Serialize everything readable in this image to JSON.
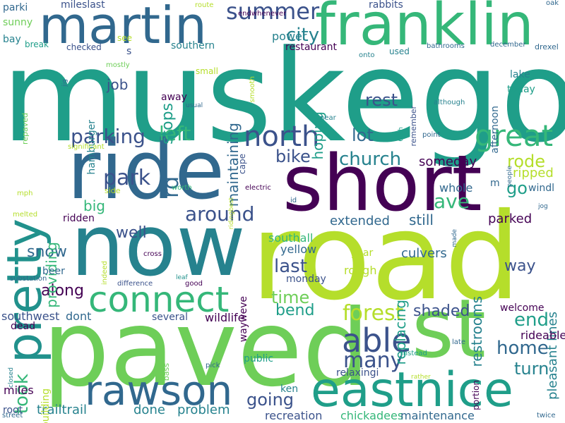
{
  "palette": {
    "dark_purple": "#440154",
    "indigo": "#3b528b",
    "blue": "#31688e",
    "teal_blue": "#26828e",
    "teal": "#21918c",
    "sea_green": "#1f9e89",
    "green": "#35b779",
    "light_green": "#6ece58",
    "yellow_green": "#b5de2b",
    "yellow": "#fde725",
    "background": "#ffffff"
  },
  "words": [
    {
      "text": "muskego",
      "color": "#1f9e89"
    },
    {
      "text": "road",
      "color": "#b5de2b"
    },
    {
      "text": "paved",
      "color": "#6ece58"
    },
    {
      "text": "now",
      "color": "#26828e"
    },
    {
      "text": "ride",
      "color": "#31688e"
    },
    {
      "text": "short",
      "color": "#440154"
    },
    {
      "text": "st",
      "color": "#6ece58"
    },
    {
      "text": "franklin",
      "color": "#35b779"
    },
    {
      "text": "martin",
      "color": "#31688e"
    },
    {
      "text": "pretty",
      "color": "#21918c"
    },
    {
      "text": "eastnice",
      "color": "#1f9e89"
    },
    {
      "text": "rawson",
      "color": "#31688e"
    },
    {
      "text": "connect",
      "color": "#35b779"
    },
    {
      "text": "great",
      "color": "#35b779"
    },
    {
      "text": "north",
      "color": "#3b528b"
    },
    {
      "text": "able",
      "color": "#3b528b"
    },
    {
      "text": "summer",
      "color": "#3b528b"
    },
    {
      "text": "parking",
      "color": "#3b528b"
    },
    {
      "text": "city",
      "color": "#26828e"
    },
    {
      "text": "rest",
      "color": "#3b528b"
    },
    {
      "text": "lot",
      "color": "#31688e"
    },
    {
      "text": "church",
      "color": "#26828e"
    },
    {
      "text": "bike",
      "color": "#3b528b"
    },
    {
      "text": "left",
      "color": "#35b779"
    },
    {
      "text": "park",
      "color": "#3b528b"
    },
    {
      "text": "rd",
      "color": "#31688e"
    },
    {
      "text": "around",
      "color": "#3b528b"
    },
    {
      "text": "rode",
      "color": "#b5de2b"
    },
    {
      "text": "go",
      "color": "#1f9e89"
    },
    {
      "text": "ave",
      "color": "#35b779"
    },
    {
      "text": "forest",
      "color": "#b5de2b"
    },
    {
      "text": "many",
      "color": "#3b528b"
    },
    {
      "text": "took",
      "color": "#35b779"
    },
    {
      "text": "home",
      "color": "#31688e"
    },
    {
      "text": "turn",
      "color": "#26828e"
    },
    {
      "text": "end",
      "color": "#1f9e89"
    },
    {
      "text": "going",
      "color": "#3b528b"
    },
    {
      "text": "last",
      "color": "#3b528b"
    },
    {
      "text": "time",
      "color": "#6ece58"
    },
    {
      "text": "snow",
      "color": "#31688e"
    },
    {
      "text": "along",
      "color": "#440154"
    },
    {
      "text": "shaded",
      "color": "#3b528b"
    },
    {
      "text": "providing",
      "color": "#35b779"
    },
    {
      "text": "job",
      "color": "#3b528b"
    },
    {
      "text": "stops",
      "color": "#1f9e89"
    },
    {
      "text": "maintaining",
      "color": "#31688e"
    },
    {
      "text": "hoping",
      "color": "#1f9e89"
    },
    {
      "text": "bend",
      "color": "#1f9e89"
    },
    {
      "text": "extended",
      "color": "#31688e"
    },
    {
      "text": "still",
      "color": "#31688e"
    },
    {
      "text": "replacing",
      "color": "#1f9e89"
    },
    {
      "text": "restrooms",
      "color": "#26828e"
    },
    {
      "text": "way",
      "color": "#3b528b"
    },
    {
      "text": "well",
      "color": "#3b528b"
    },
    {
      "text": "big",
      "color": "#35b779"
    },
    {
      "text": "someday",
      "color": "#440154"
    },
    {
      "text": "ripped",
      "color": "#b5de2b"
    },
    {
      "text": "whole",
      "color": "#31688e"
    },
    {
      "text": "parked",
      "color": "#440154"
    },
    {
      "text": "pleasant lines",
      "color": "#26828e"
    },
    {
      "text": "rideable",
      "color": "#440154"
    },
    {
      "text": "welcome",
      "color": "#440154"
    },
    {
      "text": "southall",
      "color": "#35b779"
    },
    {
      "text": "yellow",
      "color": "#31688e"
    },
    {
      "text": "culvers",
      "color": "#31688e"
    },
    {
      "text": "year",
      "color": "#b5de2b"
    },
    {
      "text": "rough",
      "color": "#b5de2b"
    },
    {
      "text": "monday",
      "color": "#3b528b"
    },
    {
      "text": "wayweve",
      "color": "#440154"
    },
    {
      "text": "wildlife",
      "color": "#440154"
    },
    {
      "text": "several",
      "color": "#3b528b"
    },
    {
      "text": "southwest",
      "color": "#3b528b"
    },
    {
      "text": "dont",
      "color": "#31688e"
    },
    {
      "text": "dead",
      "color": "#440154"
    },
    {
      "text": "problem",
      "color": "#26828e"
    },
    {
      "text": "done",
      "color": "#26828e"
    },
    {
      "text": "trailtrail",
      "color": "#26828e"
    },
    {
      "text": "recreation",
      "color": "#3b528b"
    },
    {
      "text": "chickadees",
      "color": "#35b779"
    },
    {
      "text": "maintenance",
      "color": "#31688e"
    },
    {
      "text": "relaxingi",
      "color": "#3b528b"
    },
    {
      "text": "public",
      "color": "#1f9e89"
    },
    {
      "text": "building",
      "color": "#b5de2b"
    },
    {
      "text": "miles",
      "color": "#440154"
    },
    {
      "text": "root",
      "color": "#3b528b"
    },
    {
      "text": "ridden",
      "color": "#440154"
    },
    {
      "text": "beer",
      "color": "#31688e"
    },
    {
      "text": "ken",
      "color": "#26828e"
    },
    {
      "text": "restaurant",
      "color": "#440154"
    },
    {
      "text": "power",
      "color": "#26828e"
    },
    {
      "text": "southern",
      "color": "#26828e"
    },
    {
      "text": "hamburger",
      "color": "#26828e"
    },
    {
      "text": "cape",
      "color": "#3b528b"
    },
    {
      "text": "afternoon",
      "color": "#31688e"
    },
    {
      "text": "lake",
      "color": "#26828e"
    },
    {
      "text": "today",
      "color": "#1f9e89"
    },
    {
      "text": "used",
      "color": "#26828e"
    },
    {
      "text": "rabbits",
      "color": "#3b528b"
    },
    {
      "text": "mileslast",
      "color": "#3b528b"
    },
    {
      "text": "parki",
      "color": "#31688e"
    },
    {
      "text": "sunny",
      "color": "#6ece58"
    },
    {
      "text": "bay",
      "color": "#26828e"
    },
    {
      "text": "break",
      "color": "#1f9e89"
    },
    {
      "text": "checked",
      "color": "#3b528b"
    },
    {
      "text": "see",
      "color": "#b5de2b"
    },
    {
      "text": "s",
      "color": "#3b528b"
    },
    {
      "text": "away",
      "color": "#440154"
    },
    {
      "text": "small",
      "color": "#b5de2b"
    },
    {
      "text": "windl",
      "color": "#31688e"
    },
    {
      "text": "m",
      "color": "#31688e"
    },
    {
      "text": "oak",
      "color": "#31688e"
    },
    {
      "text": "drexel",
      "color": "#31688e"
    },
    {
      "text": "december",
      "color": "#31688e"
    },
    {
      "text": "bathrooms",
      "color": "#31688e"
    },
    {
      "text": "remember",
      "color": "#3b528b"
    },
    {
      "text": "onto",
      "color": "#26828e"
    },
    {
      "text": "although",
      "color": "#26828e"
    },
    {
      "text": "68th",
      "color": "#1f9e89"
    },
    {
      "text": "point",
      "color": "#31688e"
    },
    {
      "text": "near",
      "color": "#26828e"
    },
    {
      "text": "smooth",
      "color": "#b5de2b"
    },
    {
      "text": "usual",
      "color": "#31688e"
    },
    {
      "text": "route",
      "color": "#b5de2b"
    },
    {
      "text": "endwhenever",
      "color": "#440154"
    },
    {
      "text": "mostly",
      "color": "#6ece58"
    },
    {
      "text": "jig",
      "color": "#31688e"
    },
    {
      "text": "repaved",
      "color": "#6ece58"
    },
    {
      "text": "significant",
      "color": "#b5de2b"
    },
    {
      "text": "side",
      "color": "#b5de2b"
    },
    {
      "text": "worth",
      "color": "#35b779"
    },
    {
      "text": "electric",
      "color": "#440154"
    },
    {
      "text": "ridingbest",
      "color": "#b5de2b"
    },
    {
      "text": "id",
      "color": "#31688e"
    },
    {
      "text": "mph",
      "color": "#b5de2b"
    },
    {
      "text": "melted",
      "color": "#b5de2b"
    },
    {
      "text": "indeed",
      "color": "#b5de2b"
    },
    {
      "text": "cross",
      "color": "#440154"
    },
    {
      "text": "substation",
      "color": "#31688e"
    },
    {
      "text": "difference",
      "color": "#3b528b"
    },
    {
      "text": "leaf",
      "color": "#21918c"
    },
    {
      "text": "good",
      "color": "#440154"
    },
    {
      "text": "people",
      "color": "#31688e"
    },
    {
      "text": "jog",
      "color": "#31688e"
    },
    {
      "text": "made",
      "color": "#31688e"
    },
    {
      "text": "late",
      "color": "#31688e"
    },
    {
      "text": "instead",
      "color": "#1f9e89"
    },
    {
      "text": "rather",
      "color": "#b5de2b"
    },
    {
      "text": "portion",
      "color": "#440154"
    },
    {
      "text": "bass",
      "color": "#6ece58"
    },
    {
      "text": "closed",
      "color": "#26828e"
    },
    {
      "text": "pick",
      "color": "#31688e"
    },
    {
      "text": "street",
      "color": "#31688e"
    },
    {
      "text": "twice",
      "color": "#31688e"
    }
  ]
}
